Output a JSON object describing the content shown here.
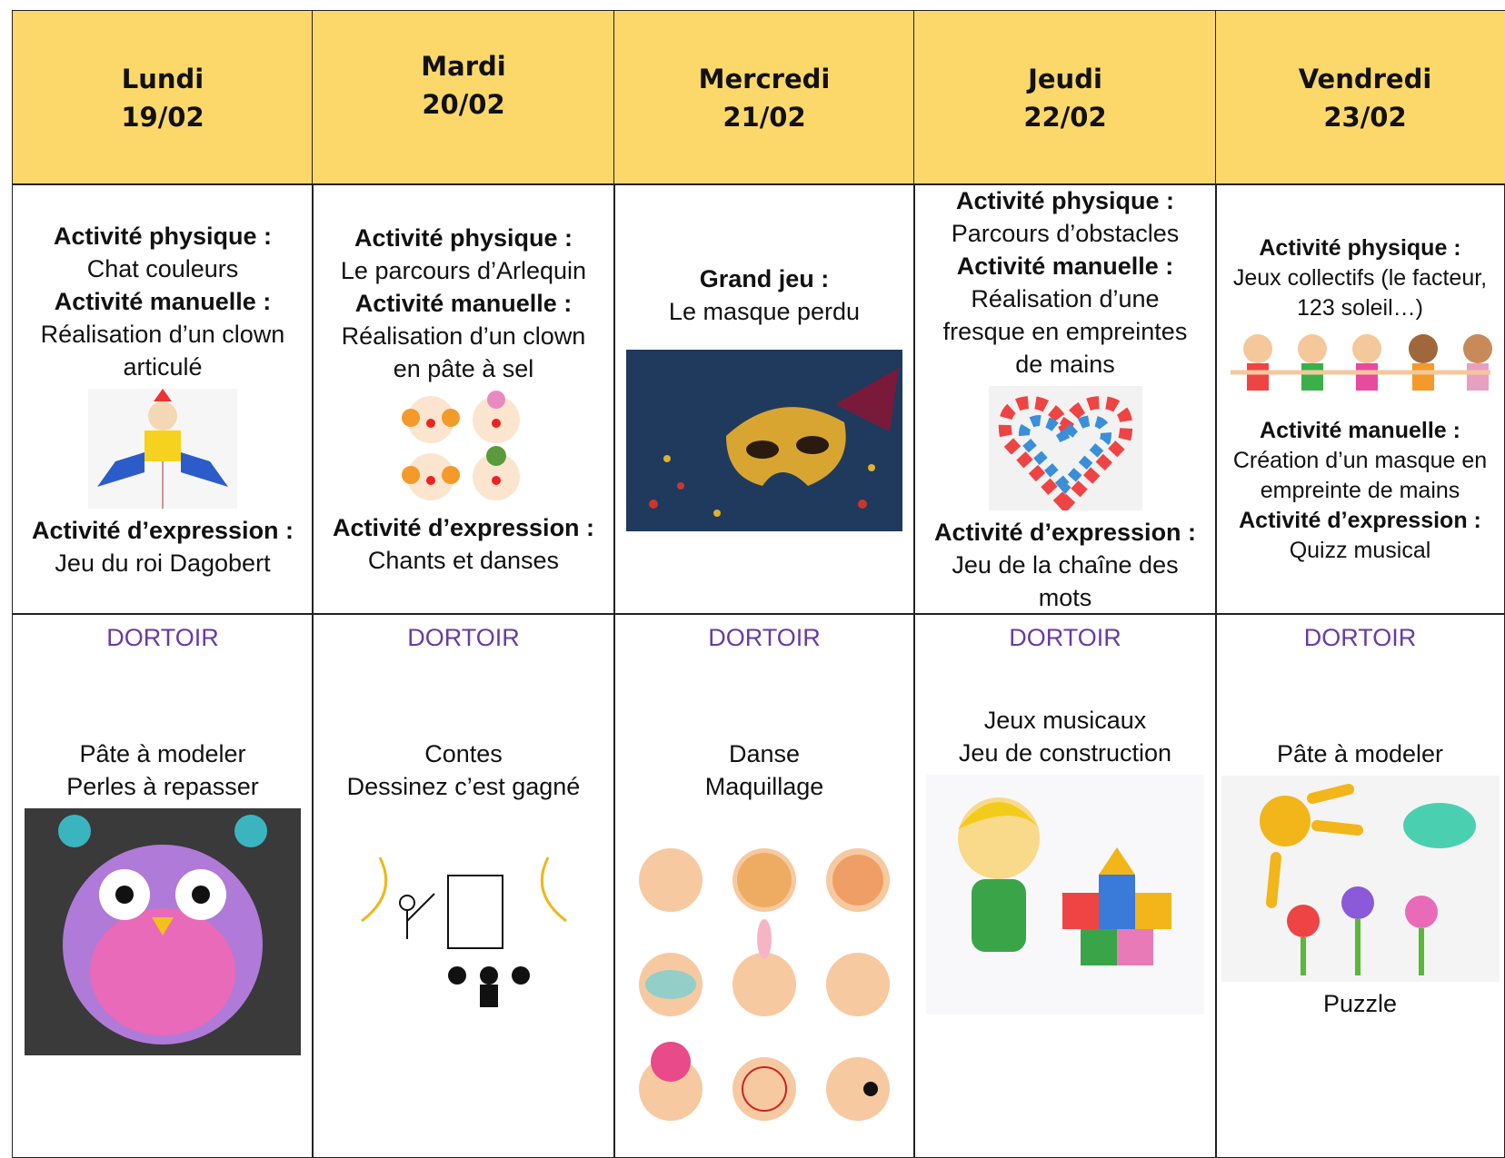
{
  "table": {
    "days": [
      {
        "name": "Lundi",
        "date": "19/02"
      },
      {
        "name": "Mardi",
        "date": "20/02"
      },
      {
        "name": "Mercredi",
        "date": "21/02"
      },
      {
        "name": "Jeudi",
        "date": "22/02"
      },
      {
        "name": "Vendredi",
        "date": "23/02"
      }
    ],
    "morning": [
      [
        {
          "label": "Activité physique :",
          "text": "Chat couleurs"
        },
        {
          "label": "Activité manuelle :",
          "text": "Réalisation d’un clown articulé"
        },
        {
          "label": "Activité d’expression :",
          "text": "Jeu du roi Dagobert"
        }
      ],
      [
        {
          "label": "Activité physique :",
          "text": "Le parcours d’Arlequin"
        },
        {
          "label": "Activité manuelle :",
          "text": "Réalisation d’un clown en pâte à sel"
        },
        {
          "label": "Activité d’expression :",
          "text": "Chants et danses"
        }
      ],
      [
        {
          "label": "Grand jeu :",
          "text": "Le masque perdu"
        }
      ],
      [
        {
          "label": "Activité physique :",
          "text": "Parcours d’obstacles"
        },
        {
          "label": "Activité manuelle :",
          "text": "Réalisation d’une fresque en empreintes de mains"
        },
        {
          "label": "Activité d’expression :",
          "text": "Jeu de la chaîne des mots"
        }
      ],
      [
        {
          "label": "Activité physique :",
          "text": "Jeux collectifs (le facteur, 123 soleil…)"
        },
        {
          "label": "Activité manuelle :",
          "text": "Création d’un masque en empreinte de mains"
        },
        {
          "label": "Activité d’expression :",
          "text": "Quizz musical"
        }
      ]
    ],
    "afternoon": [
      {
        "nap": "DORTOIR",
        "lines": [
          "Pâte à modeler",
          "Perles à repasser"
        ]
      },
      {
        "nap": "DORTOIR",
        "lines": [
          "Contes",
          "Dessinez c’est gagné"
        ]
      },
      {
        "nap": "DORTOIR",
        "lines": [
          "Danse",
          "Maquillage"
        ]
      },
      {
        "nap": "DORTOIR",
        "lines": [
          "Jeux musicaux",
          "Jeu de construction"
        ]
      },
      {
        "nap": "DORTOIR",
        "lines": [
          "Pâte à modeler"
        ],
        "after": [
          "Puzzle"
        ]
      }
    ]
  }
}
